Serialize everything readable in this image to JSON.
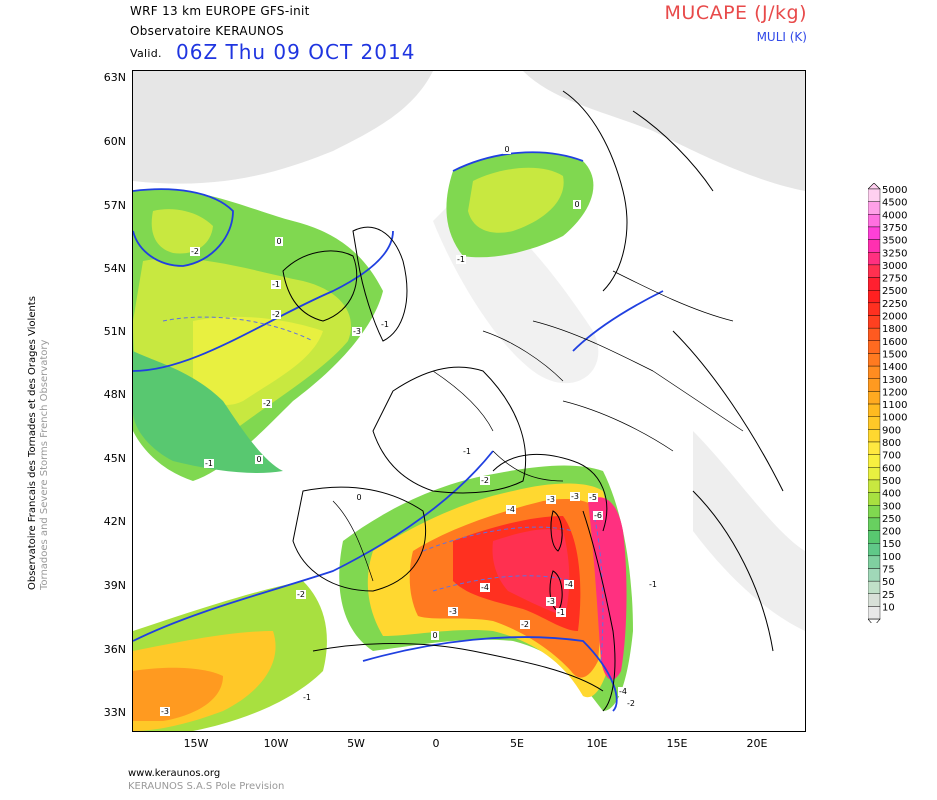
{
  "header": {
    "model_line": "WRF 13 km EUROPE   GFS-init",
    "observatory": "Observatoire KERAUNOS",
    "valid_label": "Valid.",
    "valid_date": "06Z Thu 09 OCT 2014"
  },
  "parameter": {
    "title": "MUCAPE (J/kg)",
    "subtitle": "MULI (K)",
    "title_color": "#e84a4a",
    "subtitle_color": "#3048e8"
  },
  "map": {
    "lat_labels": [
      "63N",
      "60N",
      "57N",
      "54N",
      "51N",
      "48N",
      "45N",
      "42N",
      "39N",
      "36N",
      "33N"
    ],
    "lon_labels": [
      "15W",
      "10W",
      "5W",
      "0",
      "5E",
      "10E",
      "15E",
      "20E"
    ],
    "muli_labels": [
      "0",
      "-1",
      "-2",
      "-3",
      "-4",
      "-5",
      "-6"
    ]
  },
  "side_credit": {
    "line1": "Observatoire Francais des Tornades et des Orages Violents",
    "line2": "Tornadoes and Severe Storms French Observatory"
  },
  "legend": {
    "levels": [
      "5000",
      "4500",
      "4000",
      "3750",
      "3500",
      "3250",
      "3000",
      "2750",
      "2500",
      "2250",
      "2000",
      "1800",
      "1600",
      "1500",
      "1400",
      "1300",
      "1200",
      "1100",
      "1000",
      "900",
      "800",
      "700",
      "600",
      "500",
      "400",
      "300",
      "250",
      "200",
      "150",
      "100",
      "75",
      "50",
      "25",
      "10"
    ],
    "colors": [
      "#ffd0f0",
      "#ffa0e8",
      "#ff70e0",
      "#ff40d8",
      "#ff30b0",
      "#ff3080",
      "#ff3050",
      "#ff2030",
      "#ff2020",
      "#ff3020",
      "#ff4020",
      "#ff5a20",
      "#ff6a20",
      "#ff7a20",
      "#ff8c20",
      "#ff9a20",
      "#ffaa20",
      "#ffba20",
      "#ffc828",
      "#ffd830",
      "#ffe840",
      "#f8f040",
      "#e8f040",
      "#c8e840",
      "#a8e040",
      "#80d850",
      "#68d060",
      "#58c870",
      "#60c888",
      "#80d0a0",
      "#a0d8b8",
      "#c0e0c8",
      "#d8e0d8",
      "#e8e8e8"
    ]
  },
  "footer": {
    "site": "www.keraunos.org",
    "company": "KERAUNOS S.A.S Pole Prevision"
  }
}
